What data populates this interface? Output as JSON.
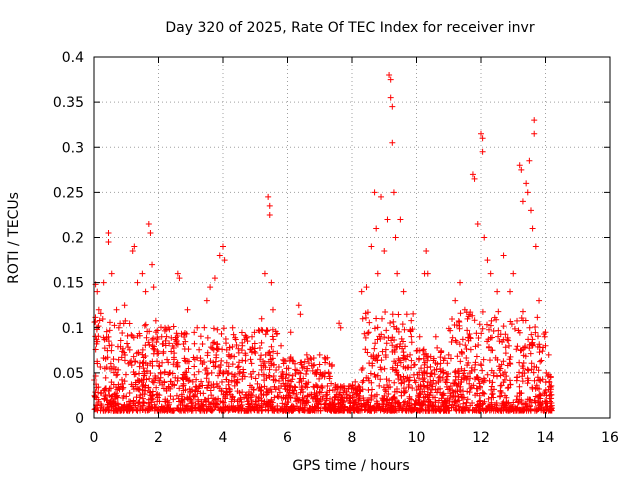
{
  "chart_data": {
    "type": "scatter",
    "title": "Day 320 of 2025, Rate Of TEC Index for receiver invr",
    "xlabel": "GPS time / hours",
    "ylabel": "ROTI / TECUs",
    "xlim": [
      0,
      16
    ],
    "ylim": [
      0,
      0.4
    ],
    "xticks": [
      0,
      2,
      4,
      6,
      8,
      10,
      12,
      14,
      16
    ],
    "xtick_labels": [
      "0",
      "2",
      "4",
      "6",
      "8",
      "10",
      "12",
      "14",
      "16"
    ],
    "yticks": [
      0,
      0.05,
      0.1,
      0.15,
      0.2,
      0.25,
      0.3,
      0.35,
      0.4
    ],
    "ytick_labels": [
      "0",
      "0.05",
      "0.1",
      "0.15",
      "0.2",
      "0.25",
      "0.3",
      "0.35",
      "0.4"
    ],
    "grid": true,
    "marker": "+",
    "color": "#ff0000",
    "data_extent_hours": [
      0.0,
      14.2
    ],
    "series": [
      {
        "name": "ROTI",
        "points": [
          [
            0.05,
            0.148
          ],
          [
            0.1,
            0.14
          ],
          [
            0.15,
            0.12
          ],
          [
            0.3,
            0.15
          ],
          [
            0.45,
            0.205
          ],
          [
            0.45,
            0.195
          ],
          [
            0.55,
            0.16
          ],
          [
            0.7,
            0.12
          ],
          [
            0.95,
            0.125
          ],
          [
            1.2,
            0.185
          ],
          [
            1.25,
            0.19
          ],
          [
            1.35,
            0.15
          ],
          [
            1.5,
            0.16
          ],
          [
            1.6,
            0.14
          ],
          [
            1.7,
            0.215
          ],
          [
            1.75,
            0.205
          ],
          [
            1.8,
            0.17
          ],
          [
            1.85,
            0.145
          ],
          [
            2.1,
            0.09
          ],
          [
            2.3,
            0.1
          ],
          [
            2.6,
            0.16
          ],
          [
            2.65,
            0.155
          ],
          [
            2.9,
            0.12
          ],
          [
            3.2,
            0.1
          ],
          [
            3.5,
            0.13
          ],
          [
            3.6,
            0.145
          ],
          [
            3.75,
            0.155
          ],
          [
            3.9,
            0.18
          ],
          [
            4.0,
            0.19
          ],
          [
            4.05,
            0.175
          ],
          [
            4.3,
            0.1
          ],
          [
            4.6,
            0.08
          ],
          [
            4.9,
            0.09
          ],
          [
            5.2,
            0.11
          ],
          [
            5.3,
            0.16
          ],
          [
            5.4,
            0.245
          ],
          [
            5.45,
            0.235
          ],
          [
            5.45,
            0.225
          ],
          [
            5.5,
            0.15
          ],
          [
            5.55,
            0.12
          ],
          [
            5.8,
            0.08
          ],
          [
            6.1,
            0.095
          ],
          [
            6.35,
            0.125
          ],
          [
            6.4,
            0.115
          ],
          [
            6.6,
            0.07
          ],
          [
            7.0,
            0.07
          ],
          [
            7.3,
            0.06
          ],
          [
            7.6,
            0.105
          ],
          [
            7.65,
            0.1
          ],
          [
            7.9,
            0.035
          ],
          [
            8.1,
            0.04
          ],
          [
            8.3,
            0.14
          ],
          [
            8.45,
            0.145
          ],
          [
            8.6,
            0.19
          ],
          [
            8.7,
            0.25
          ],
          [
            8.75,
            0.21
          ],
          [
            8.8,
            0.16
          ],
          [
            8.9,
            0.245
          ],
          [
            9.0,
            0.185
          ],
          [
            9.1,
            0.22
          ],
          [
            9.15,
            0.38
          ],
          [
            9.2,
            0.375
          ],
          [
            9.2,
            0.355
          ],
          [
            9.25,
            0.345
          ],
          [
            9.25,
            0.305
          ],
          [
            9.3,
            0.25
          ],
          [
            9.35,
            0.2
          ],
          [
            9.4,
            0.16
          ],
          [
            9.5,
            0.22
          ],
          [
            9.6,
            0.14
          ],
          [
            9.8,
            0.07
          ],
          [
            10.1,
            0.09
          ],
          [
            10.25,
            0.16
          ],
          [
            10.3,
            0.185
          ],
          [
            10.35,
            0.16
          ],
          [
            10.6,
            0.09
          ],
          [
            11.0,
            0.07
          ],
          [
            11.2,
            0.13
          ],
          [
            11.35,
            0.15
          ],
          [
            11.5,
            0.12
          ],
          [
            11.75,
            0.27
          ],
          [
            11.8,
            0.265
          ],
          [
            11.9,
            0.215
          ],
          [
            12.0,
            0.315
          ],
          [
            12.05,
            0.31
          ],
          [
            12.05,
            0.295
          ],
          [
            12.1,
            0.2
          ],
          [
            12.2,
            0.175
          ],
          [
            12.3,
            0.16
          ],
          [
            12.5,
            0.14
          ],
          [
            12.7,
            0.18
          ],
          [
            12.9,
            0.14
          ],
          [
            13.0,
            0.16
          ],
          [
            13.2,
            0.28
          ],
          [
            13.25,
            0.275
          ],
          [
            13.3,
            0.24
          ],
          [
            13.4,
            0.26
          ],
          [
            13.45,
            0.25
          ],
          [
            13.5,
            0.285
          ],
          [
            13.55,
            0.23
          ],
          [
            13.6,
            0.21
          ],
          [
            13.65,
            0.33
          ],
          [
            13.65,
            0.315
          ],
          [
            13.7,
            0.19
          ],
          [
            13.8,
            0.13
          ],
          [
            14.0,
            0.08
          ],
          [
            14.1,
            0.07
          ]
        ]
      }
    ]
  }
}
